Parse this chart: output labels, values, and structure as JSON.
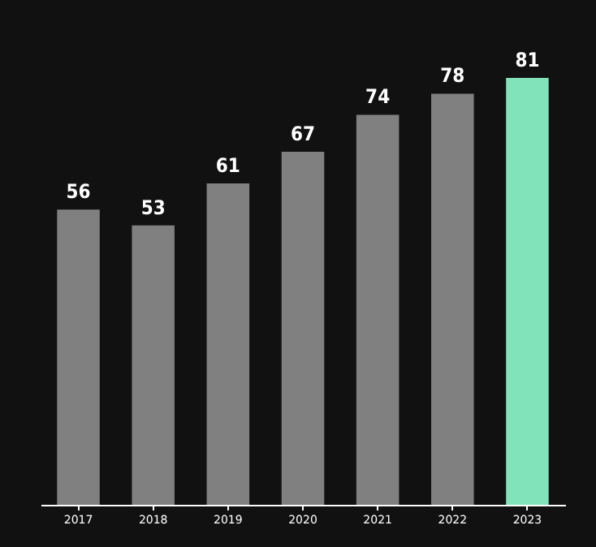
{
  "chart_data": {
    "type": "bar",
    "categories": [
      "2017",
      "2018",
      "2019",
      "2020",
      "2021",
      "2022",
      "2023"
    ],
    "values": [
      56,
      53,
      61,
      67,
      74,
      78,
      81
    ],
    "colors": [
      "#808080",
      "#808080",
      "#808080",
      "#808080",
      "#808080",
      "#808080",
      "#80e3b9"
    ],
    "ylim": [
      0,
      81
    ],
    "data_labels": true,
    "grid": false,
    "tick_labels": "x"
  }
}
